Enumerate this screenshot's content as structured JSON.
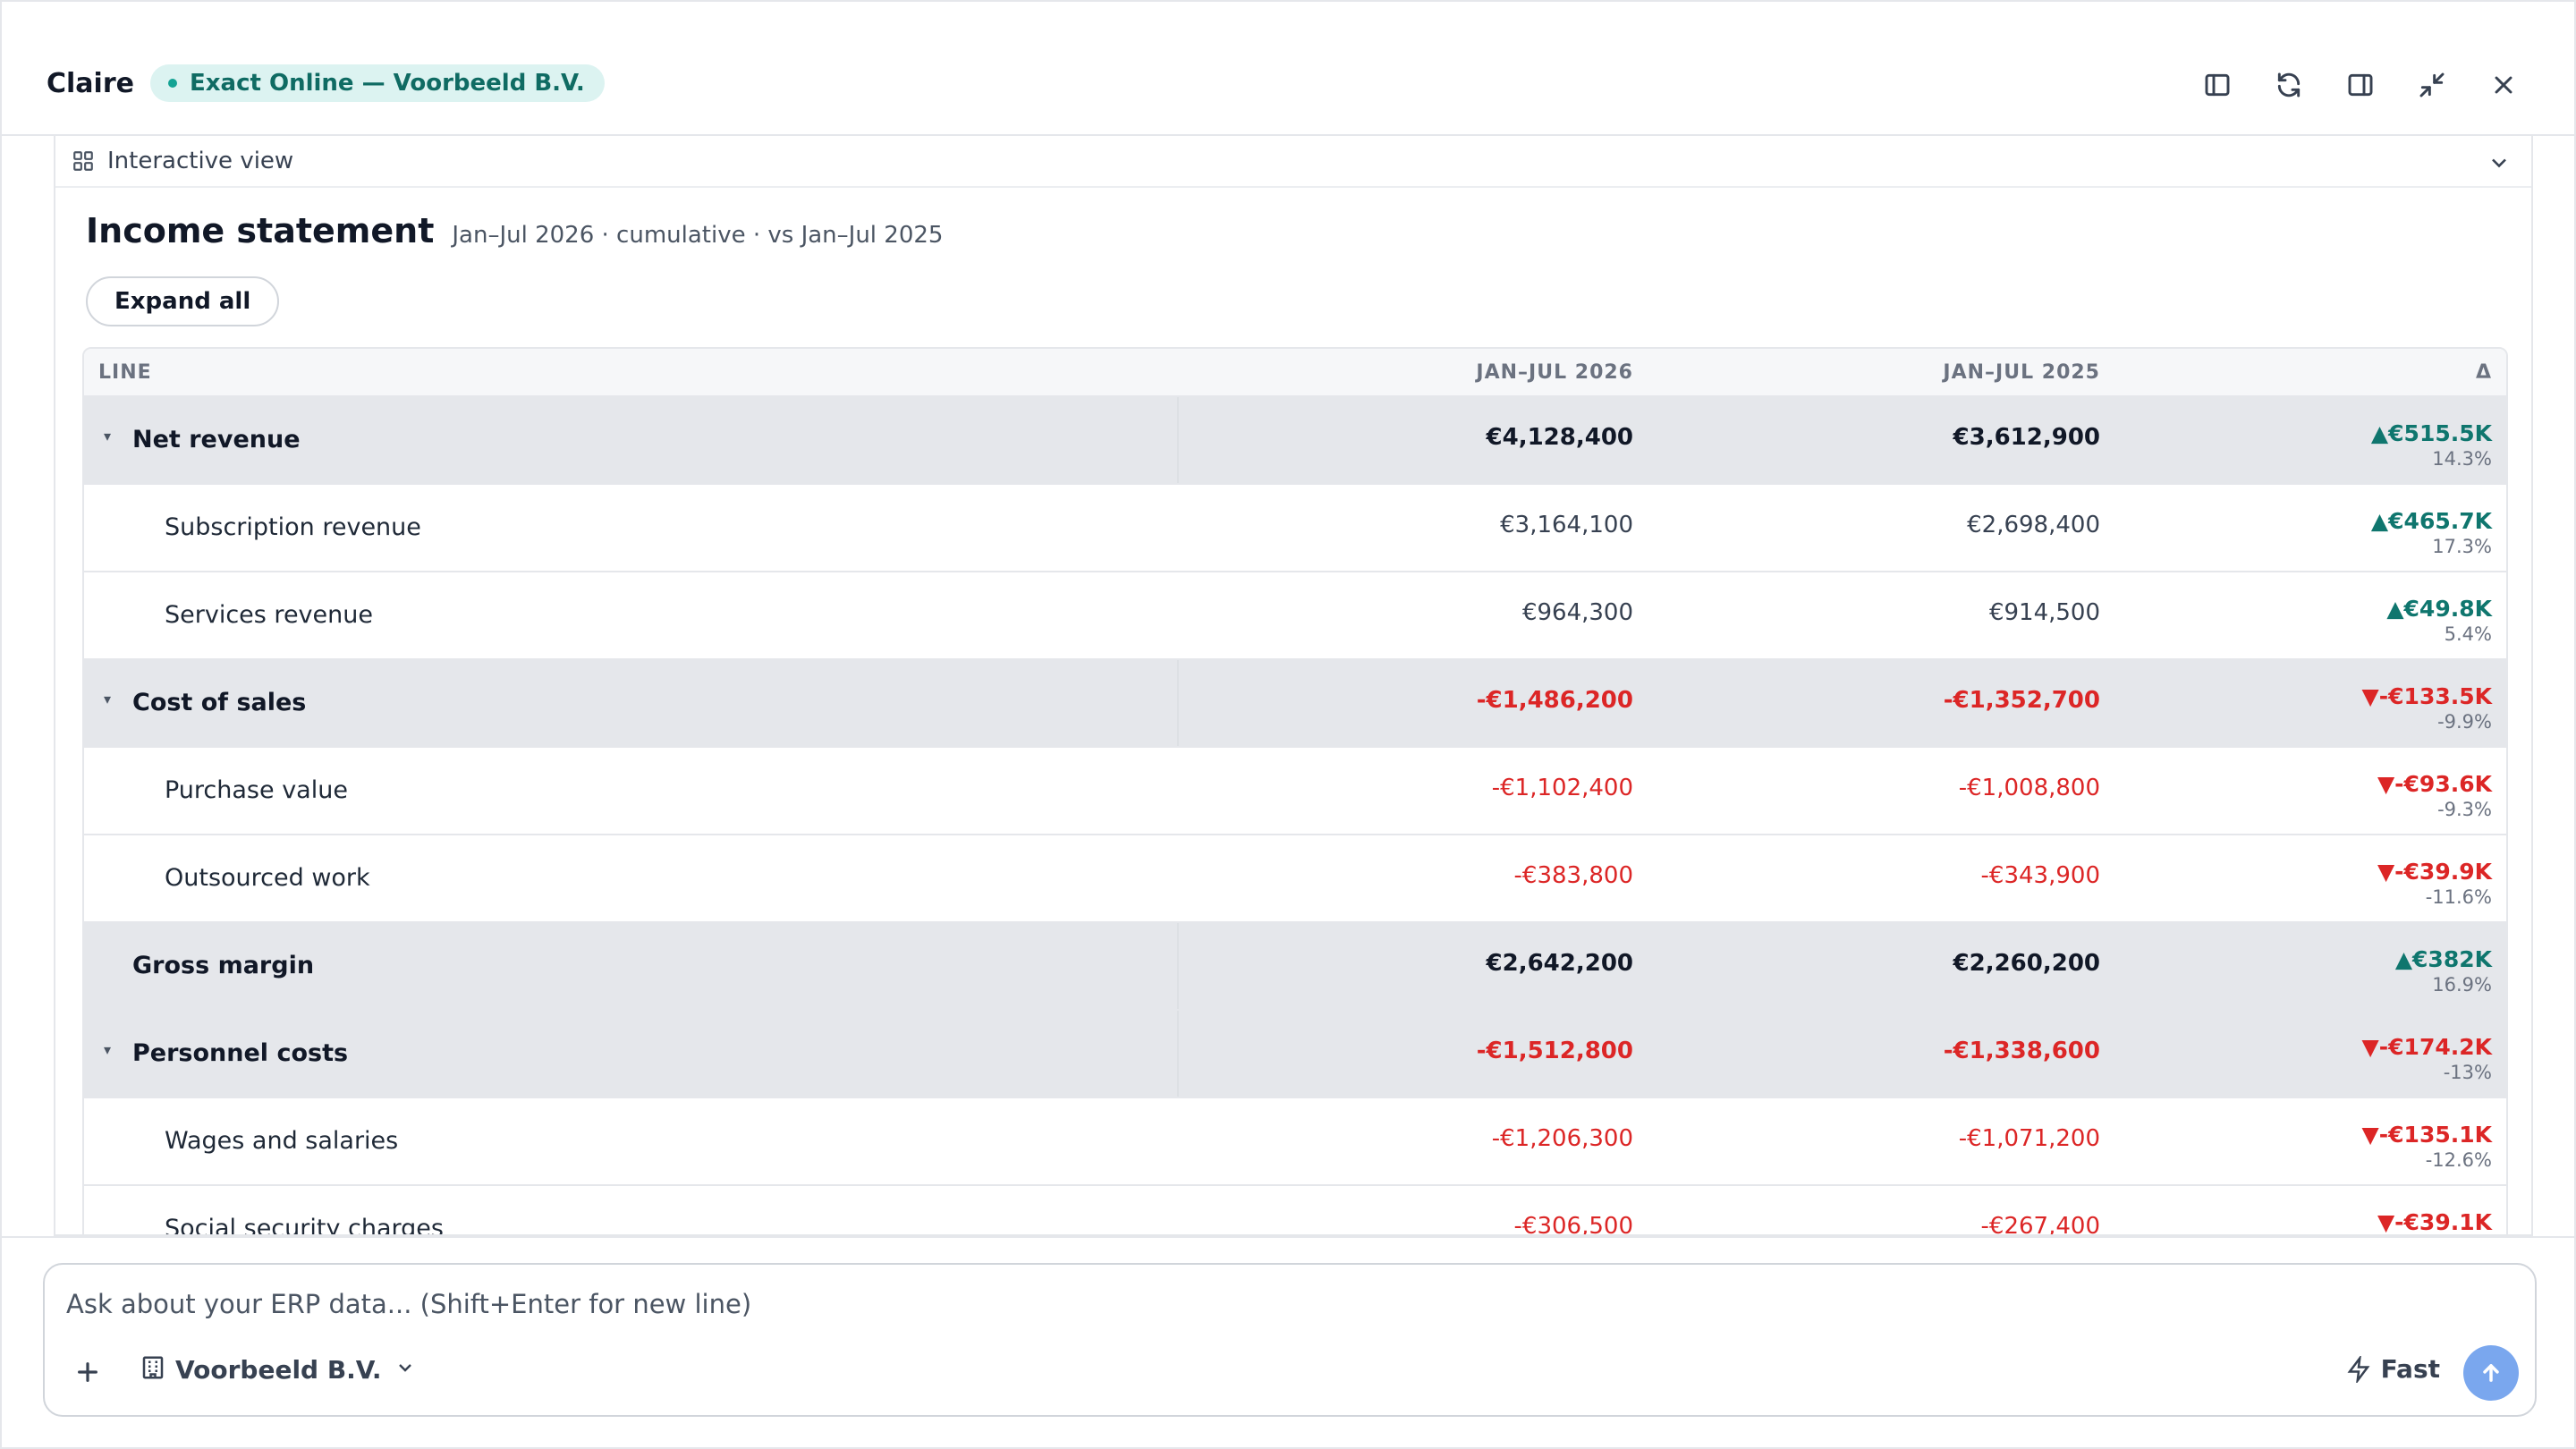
{
  "header": {
    "brand": "Claire",
    "connection_label": "Exact Online — Voorbeeld B.V.",
    "connection_color": "#14a394",
    "icons": [
      "sidebar-left-icon",
      "refresh-icon",
      "sidebar-right-icon",
      "minimize-icon",
      "close-icon"
    ]
  },
  "panel": {
    "title": "Interactive view",
    "icon": "grid-icon"
  },
  "report": {
    "title": "Income statement",
    "subtitle": "Jan–Jul 2026 · cumulative · vs Jan–Jul 2025",
    "expand_label": "Expand all",
    "columns": [
      "LINE",
      "JAN–JUL 2026",
      "JAN–JUL 2025",
      "Δ"
    ],
    "rows": [
      {
        "label": "Net revenue",
        "group": true,
        "caret": true,
        "v2026": "€4,128,400",
        "v2025": "€3,612,900",
        "delta": "▲€515.5K",
        "pct": "14.3%",
        "dir": "up",
        "sign": "pos"
      },
      {
        "label": "Subscription revenue",
        "group": false,
        "v2026": "€3,164,100",
        "v2025": "€2,698,400",
        "delta": "▲€465.7K",
        "pct": "17.3%",
        "dir": "up",
        "sign": "pos"
      },
      {
        "label": "Services revenue",
        "group": false,
        "v2026": "€964,300",
        "v2025": "€914,500",
        "delta": "▲€49.8K",
        "pct": "5.4%",
        "dir": "up",
        "sign": "pos"
      },
      {
        "label": "Cost of sales",
        "group": true,
        "caret": true,
        "v2026": "-€1,486,200",
        "v2025": "-€1,352,700",
        "delta": "▼-€133.5K",
        "pct": "-9.9%",
        "dir": "down",
        "sign": "neg"
      },
      {
        "label": "Purchase value",
        "group": false,
        "v2026": "-€1,102,400",
        "v2025": "-€1,008,800",
        "delta": "▼-€93.6K",
        "pct": "-9.3%",
        "dir": "down",
        "sign": "neg"
      },
      {
        "label": "Outsourced work",
        "group": false,
        "v2026": "-€383,800",
        "v2025": "-€343,900",
        "delta": "▼-€39.9K",
        "pct": "-11.6%",
        "dir": "down",
        "sign": "neg"
      },
      {
        "label": "Gross margin",
        "group": true,
        "caret": false,
        "v2026": "€2,642,200",
        "v2025": "€2,260,200",
        "delta": "▲€382K",
        "pct": "16.9%",
        "dir": "up",
        "sign": "pos"
      },
      {
        "label": "Personnel costs",
        "group": true,
        "caret": true,
        "v2026": "-€1,512,800",
        "v2025": "-€1,338,600",
        "delta": "▼-€174.2K",
        "pct": "-13%",
        "dir": "down",
        "sign": "neg"
      },
      {
        "label": "Wages and salaries",
        "group": false,
        "v2026": "-€1,206,300",
        "v2025": "-€1,071,200",
        "delta": "▼-€135.1K",
        "pct": "-12.6%",
        "dir": "down",
        "sign": "neg"
      },
      {
        "label": "Social security charges",
        "group": false,
        "v2026": "-€306,500",
        "v2025": "-€267,400",
        "delta": "▼-€39.1K",
        "pct": "",
        "dir": "down",
        "sign": "neg"
      }
    ]
  },
  "composer": {
    "placeholder": "Ask about your ERP data... (Shift+Enter for new line)",
    "company": "Voorbeeld B.V.",
    "mode": "Fast",
    "send_color": "#7aa7ee"
  }
}
